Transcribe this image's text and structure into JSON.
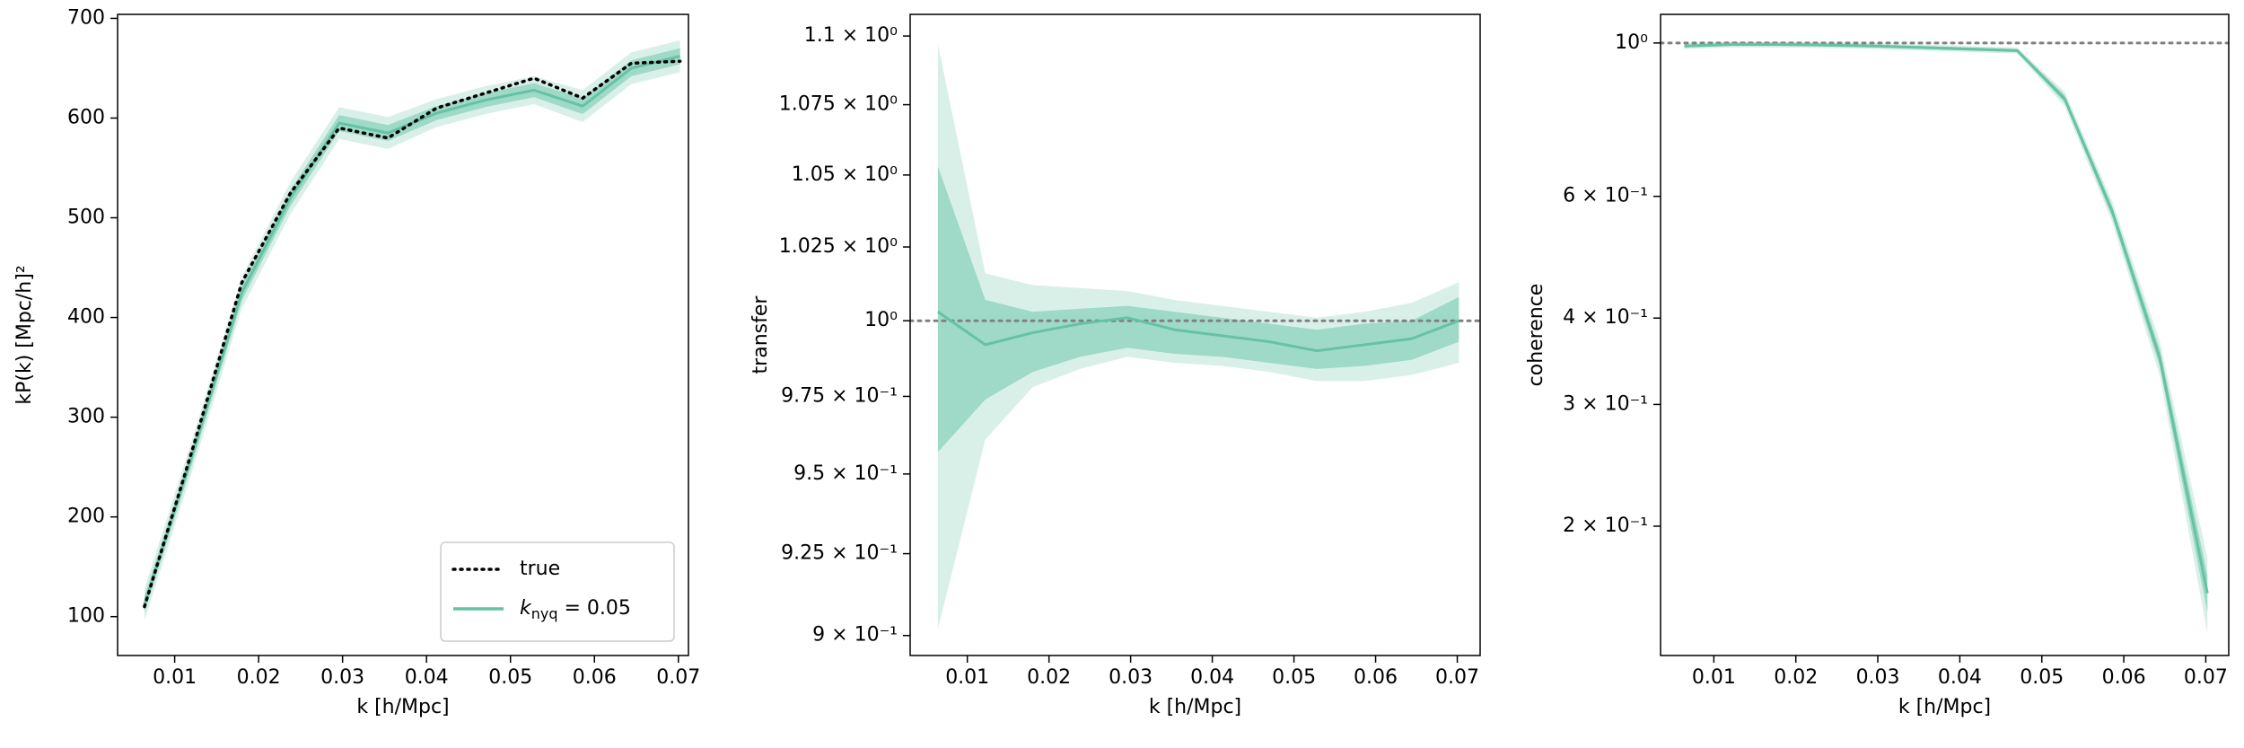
{
  "chart_data": [
    {
      "type": "line",
      "xlabel": "k [h/Mpc]",
      "ylabel": "kP(k) [Mpc/h]²",
      "x": [
        0.0064,
        0.0122,
        0.018,
        0.0238,
        0.0296,
        0.0354,
        0.0412,
        0.047,
        0.0528,
        0.0586,
        0.0644,
        0.0702
      ],
      "xlim": [
        0.0032,
        0.0712
      ],
      "xticks": [
        0.01,
        0.02,
        0.03,
        0.04,
        0.05,
        0.06,
        0.07
      ],
      "ylim": [
        61,
        704
      ],
      "yticks": [
        100,
        200,
        300,
        400,
        500,
        600,
        700
      ],
      "legend": "lower right",
      "series": [
        {
          "name": "true",
          "color": "#000000",
          "linestyle": "dotted",
          "values": [
            110,
            270,
            435,
            525,
            590,
            580,
            610,
            625,
            640,
            620,
            655,
            657
          ]
        },
        {
          "name": {
            "base": "k",
            "sub": "nyq",
            "rest": " = 0.05"
          },
          "color": "#66c2a5",
          "linestyle": "solid",
          "values": [
            112,
            265,
            425,
            520,
            595,
            585,
            605,
            618,
            628,
            612,
            650,
            662
          ],
          "bands": [
            {
              "lower": [
                96,
                249,
                409,
                504,
                579,
                569,
                591,
                604,
                614,
                596,
                634,
                646
              ],
              "upper": [
                128,
                281,
                441,
                536,
                611,
                601,
                619,
                632,
                642,
                628,
                666,
                678
              ]
            },
            {
              "lower": [
                104,
                257,
                417,
                512,
                587,
                577,
                598,
                611,
                621,
                604,
                642,
                654
              ],
              "upper": [
                120,
                273,
                433,
                528,
                603,
                593,
                612,
                625,
                635,
                620,
                658,
                670
              ]
            }
          ]
        }
      ]
    },
    {
      "type": "line",
      "xlabel": "k [h/Mpc]",
      "ylabel": "transfer",
      "yscale": "log",
      "hline": 1,
      "hline_color": "#808080",
      "x": [
        0.0064,
        0.0122,
        0.018,
        0.0238,
        0.0296,
        0.0354,
        0.0412,
        0.047,
        0.0528,
        0.0586,
        0.0644,
        0.0702
      ],
      "xlim": [
        0.003,
        0.0728
      ],
      "xticks": [
        0.01,
        0.02,
        0.03,
        0.04,
        0.05,
        0.06,
        0.07
      ],
      "ylim": [
        0.894,
        1.108
      ],
      "yticks": [
        {
          "value": 0.9,
          "label": "9 × 10⁻¹"
        },
        {
          "value": 0.925,
          "label": "9.25 × 10⁻¹"
        },
        {
          "value": 0.95,
          "label": "9.5 × 10⁻¹"
        },
        {
          "value": 0.975,
          "label": "9.75 × 10⁻¹"
        },
        {
          "value": 1,
          "label": "10⁰"
        },
        {
          "value": 1.025,
          "label": "1.025 × 10⁰"
        },
        {
          "value": 1.05,
          "label": "1.05 × 10⁰"
        },
        {
          "value": 1.075,
          "label": "1.075 × 10⁰"
        },
        {
          "value": 1.1,
          "label": "1.1 × 10⁰"
        }
      ],
      "series": [
        {
          "color": "#66c2a5",
          "linestyle": "solid",
          "values": [
            1.003,
            0.992,
            0.996,
            0.999,
            1.001,
            0.997,
            0.995,
            0.993,
            0.99,
            0.992,
            0.994,
            1.0
          ],
          "bands": [
            {
              "lower": [
                0.902,
                0.961,
                0.978,
                0.984,
                0.988,
                0.986,
                0.985,
                0.983,
                0.98,
                0.98,
                0.982,
                0.986
              ],
              "upper": [
                1.097,
                1.016,
                1.012,
                1.011,
                1.01,
                1.007,
                1.005,
                1.003,
                1.001,
                1.003,
                1.006,
                1.013
              ]
            },
            {
              "lower": [
                0.957,
                0.974,
                0.983,
                0.988,
                0.991,
                0.989,
                0.988,
                0.986,
                0.984,
                0.985,
                0.987,
                0.993
              ],
              "upper": [
                1.053,
                1.007,
                1.003,
                1.004,
                1.005,
                1.003,
                1.001,
                0.999,
                0.997,
                0.999,
                1.0,
                1.008
              ]
            }
          ]
        }
      ]
    },
    {
      "type": "line",
      "xlabel": "k [h/Mpc]",
      "ylabel": "coherence",
      "yscale": "log",
      "hline": 1,
      "hline_color": "#808080",
      "x": [
        0.0064,
        0.0122,
        0.018,
        0.0238,
        0.0296,
        0.0354,
        0.0412,
        0.047,
        0.0528,
        0.0586,
        0.0644,
        0.0702
      ],
      "xlim": [
        0.0035,
        0.0728
      ],
      "xticks": [
        0.01,
        0.02,
        0.03,
        0.04,
        0.05,
        0.06,
        0.07
      ],
      "ylim": [
        0.13,
        1.1
      ],
      "yticks": [
        {
          "value": 0.2,
          "label": "2 × 10⁻¹"
        },
        {
          "value": 0.3,
          "label": "3 × 10⁻¹"
        },
        {
          "value": 0.4,
          "label": "4 × 10⁻¹"
        },
        {
          "value": 0.6,
          "label": "6 × 10⁻¹"
        },
        {
          "value": 1,
          "label": "10⁰"
        }
      ],
      "series": [
        {
          "color": "#66c2a5",
          "linestyle": "solid",
          "values": [
            0.99,
            0.995,
            0.995,
            0.993,
            0.99,
            0.985,
            0.98,
            0.975,
            0.83,
            0.57,
            0.35,
            0.16
          ],
          "bands": [
            {
              "lower": [
                0.98,
                0.985,
                0.985,
                0.983,
                0.98,
                0.975,
                0.97,
                0.965,
                0.81,
                0.55,
                0.33,
                0.14
              ],
              "upper": [
                1.0,
                1.005,
                1.005,
                1.003,
                1.0,
                0.995,
                0.99,
                0.985,
                0.85,
                0.59,
                0.37,
                0.18
              ]
            },
            {
              "lower": [
                0.985,
                0.99,
                0.99,
                0.988,
                0.985,
                0.98,
                0.975,
                0.97,
                0.82,
                0.56,
                0.34,
                0.15
              ],
              "upper": [
                0.995,
                1.0,
                1.0,
                0.998,
                0.995,
                0.99,
                0.985,
                0.98,
                0.84,
                0.58,
                0.36,
                0.17
              ]
            }
          ]
        }
      ]
    }
  ]
}
